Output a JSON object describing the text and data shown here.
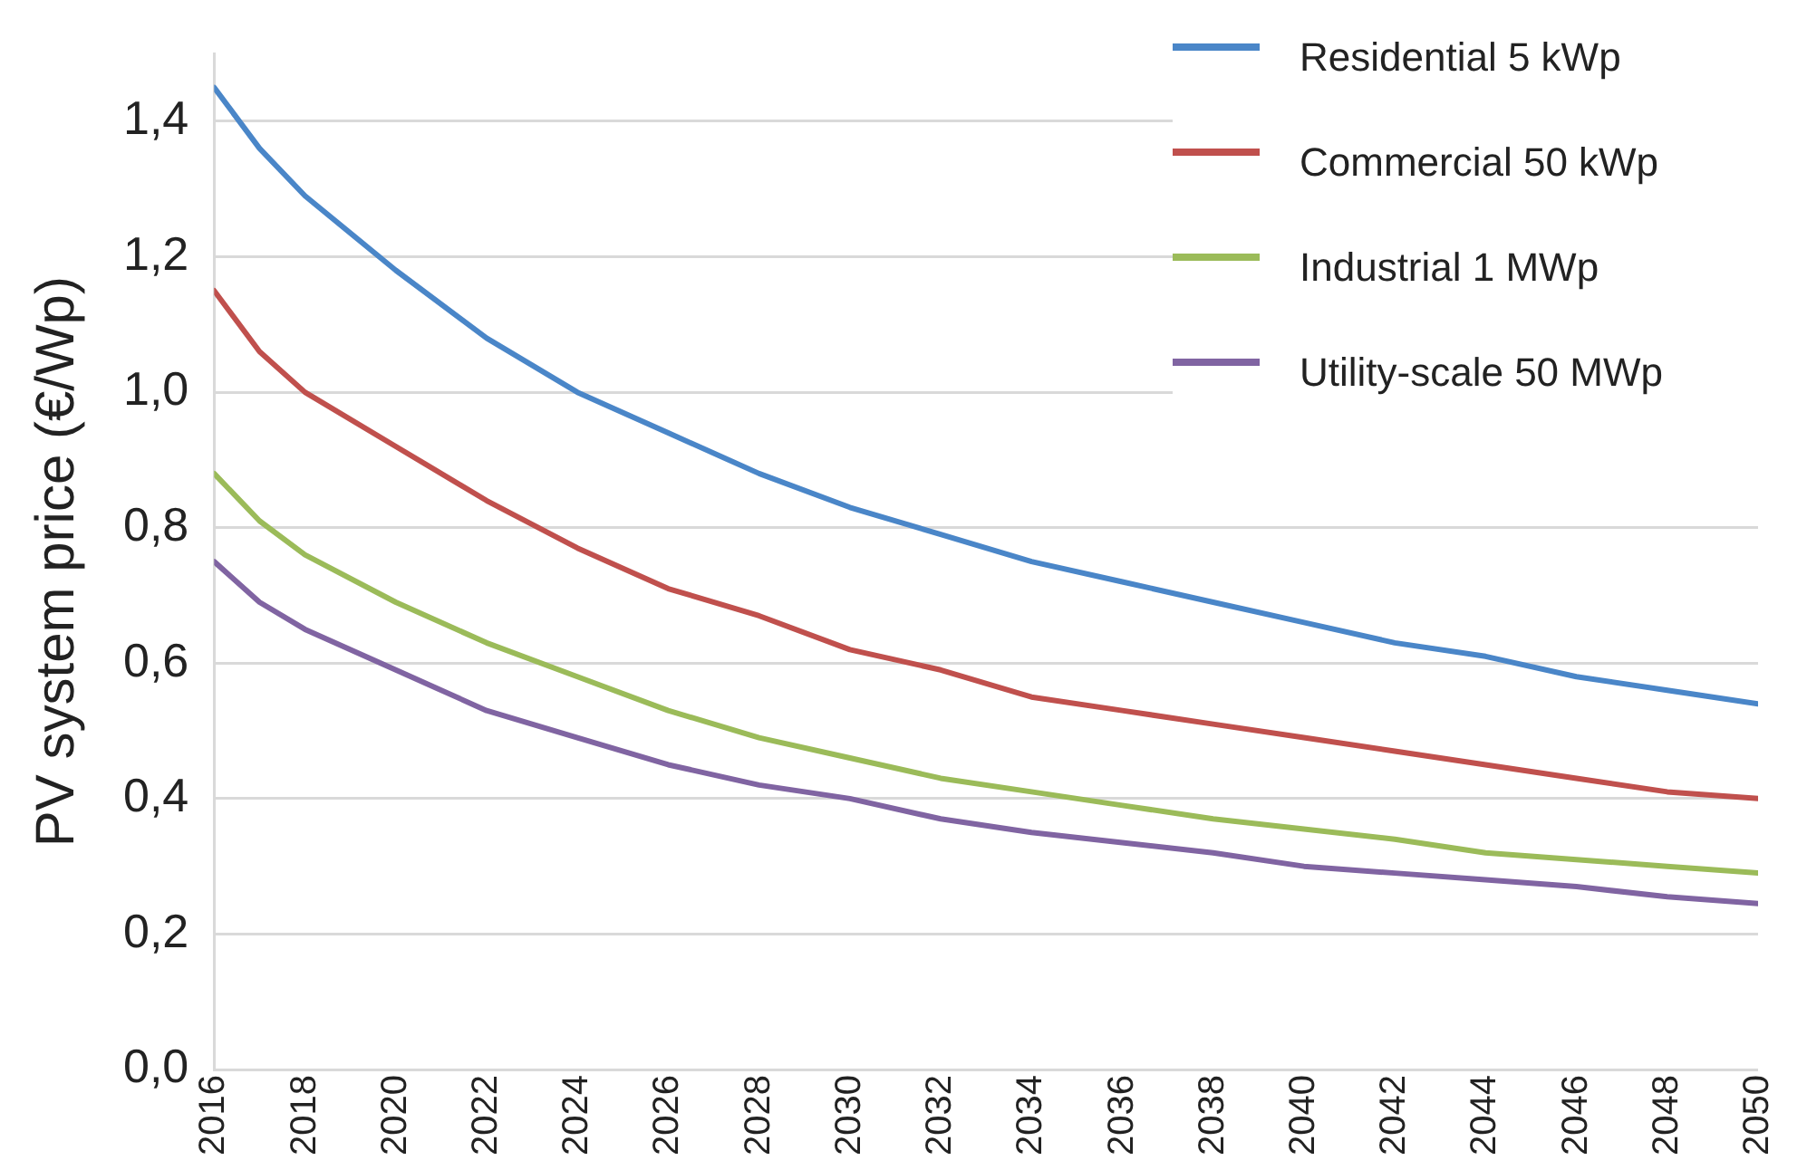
{
  "chart_data": {
    "type": "line",
    "ylabel": "PV system price (€/Wp)",
    "x": [
      2016,
      2017,
      2018,
      2020,
      2022,
      2024,
      2026,
      2028,
      2030,
      2032,
      2034,
      2036,
      2038,
      2040,
      2042,
      2044,
      2046,
      2048,
      2050
    ],
    "series": [
      {
        "name": "Residential 5 kWp",
        "color": "#4a86c8",
        "values": [
          1.45,
          1.36,
          1.29,
          1.18,
          1.08,
          1.0,
          0.94,
          0.88,
          0.83,
          0.79,
          0.75,
          0.72,
          0.69,
          0.66,
          0.63,
          0.61,
          0.58,
          0.56,
          0.54
        ]
      },
      {
        "name": "Commercial 50 kWp",
        "color": "#c0504d",
        "values": [
          1.15,
          1.06,
          1.0,
          0.92,
          0.84,
          0.77,
          0.71,
          0.67,
          0.62,
          0.59,
          0.55,
          0.53,
          0.51,
          0.49,
          0.47,
          0.45,
          0.43,
          0.41,
          0.4
        ]
      },
      {
        "name": "Industrial 1 MWp",
        "color": "#9bbb59",
        "values": [
          0.88,
          0.81,
          0.76,
          0.69,
          0.63,
          0.58,
          0.53,
          0.49,
          0.46,
          0.43,
          0.41,
          0.39,
          0.37,
          0.355,
          0.34,
          0.32,
          0.31,
          0.3,
          0.29
        ]
      },
      {
        "name": "Utility-scale 50 MWp",
        "color": "#8064a2",
        "values": [
          0.75,
          0.69,
          0.65,
          0.59,
          0.53,
          0.49,
          0.45,
          0.42,
          0.4,
          0.37,
          0.35,
          0.335,
          0.32,
          0.3,
          0.29,
          0.28,
          0.27,
          0.255,
          0.245
        ]
      }
    ],
    "xlim": [
      2016,
      2050
    ],
    "xticks": [
      2016,
      2018,
      2020,
      2022,
      2024,
      2026,
      2028,
      2030,
      2032,
      2034,
      2036,
      2038,
      2040,
      2042,
      2044,
      2046,
      2048,
      2050
    ],
    "ylim": [
      0,
      1.5
    ],
    "yticks": [
      {
        "value": 0,
        "label": "0,0"
      },
      {
        "value": 0.2,
        "label": "0,2"
      },
      {
        "value": 0.4,
        "label": "0,4"
      },
      {
        "value": 0.6,
        "label": "0,6"
      },
      {
        "value": 0.8,
        "label": "0,8"
      },
      {
        "value": 1.0,
        "label": "1,0"
      },
      {
        "value": 1.2,
        "label": "1,2"
      },
      {
        "value": 1.4,
        "label": "1,4"
      }
    ],
    "grid": "y",
    "legend": "top right",
    "marker": "none",
    "line_style": "solid"
  }
}
